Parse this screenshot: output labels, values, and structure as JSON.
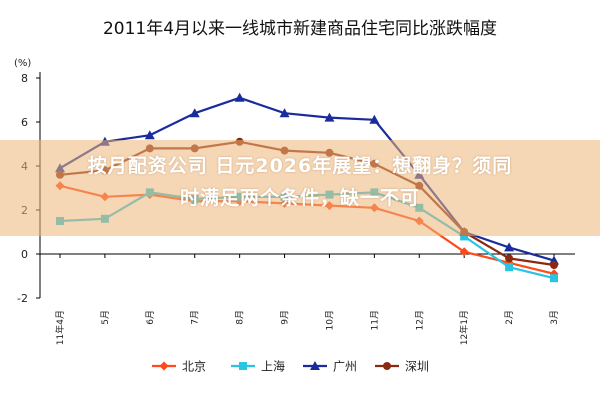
{
  "chart_data": {
    "type": "line",
    "title": "2011年4月以来一线城市新建商品住宅同比涨跌幅度",
    "unit_label": "(%)",
    "x": [
      "11年4月",
      "5月",
      "6月",
      "7月",
      "8月",
      "9月",
      "10月",
      "11月",
      "12月",
      "12年1月",
      "2月",
      "3月"
    ],
    "yticks": [
      "-2",
      "0",
      "2",
      "4",
      "6",
      "8"
    ],
    "ylim": [
      -2,
      8
    ],
    "grid": false,
    "legend_position": "bottom",
    "series": [
      {
        "name": "北京",
        "color": "#ff4a1a",
        "marker": "diamond",
        "values": [
          3.1,
          2.6,
          2.7,
          2.4,
          2.4,
          2.3,
          2.2,
          2.1,
          1.5,
          0.1,
          -0.4,
          -0.9
        ]
      },
      {
        "name": "上海",
        "color": "#29c4e0",
        "marker": "square",
        "values": [
          1.5,
          1.6,
          2.8,
          2.5,
          2.6,
          2.6,
          2.7,
          2.8,
          2.1,
          0.8,
          -0.6,
          -1.1
        ]
      },
      {
        "name": "广州",
        "color": "#1a2c9c",
        "marker": "triangle",
        "values": [
          3.9,
          5.1,
          5.4,
          6.4,
          7.1,
          6.4,
          6.2,
          6.1,
          3.6,
          1.0,
          0.3,
          -0.3
        ]
      },
      {
        "name": "深圳",
        "color": "#8a2a10",
        "marker": "circle",
        "values": [
          3.6,
          3.8,
          4.8,
          4.8,
          5.1,
          4.7,
          4.6,
          4.1,
          3.1,
          1.0,
          -0.2,
          -0.5
        ]
      }
    ]
  },
  "overlay": {
    "line1": "按月配资公司 日元2026年展望：想翻身？须同",
    "line2": "时满足两个条件，缺一不可"
  }
}
